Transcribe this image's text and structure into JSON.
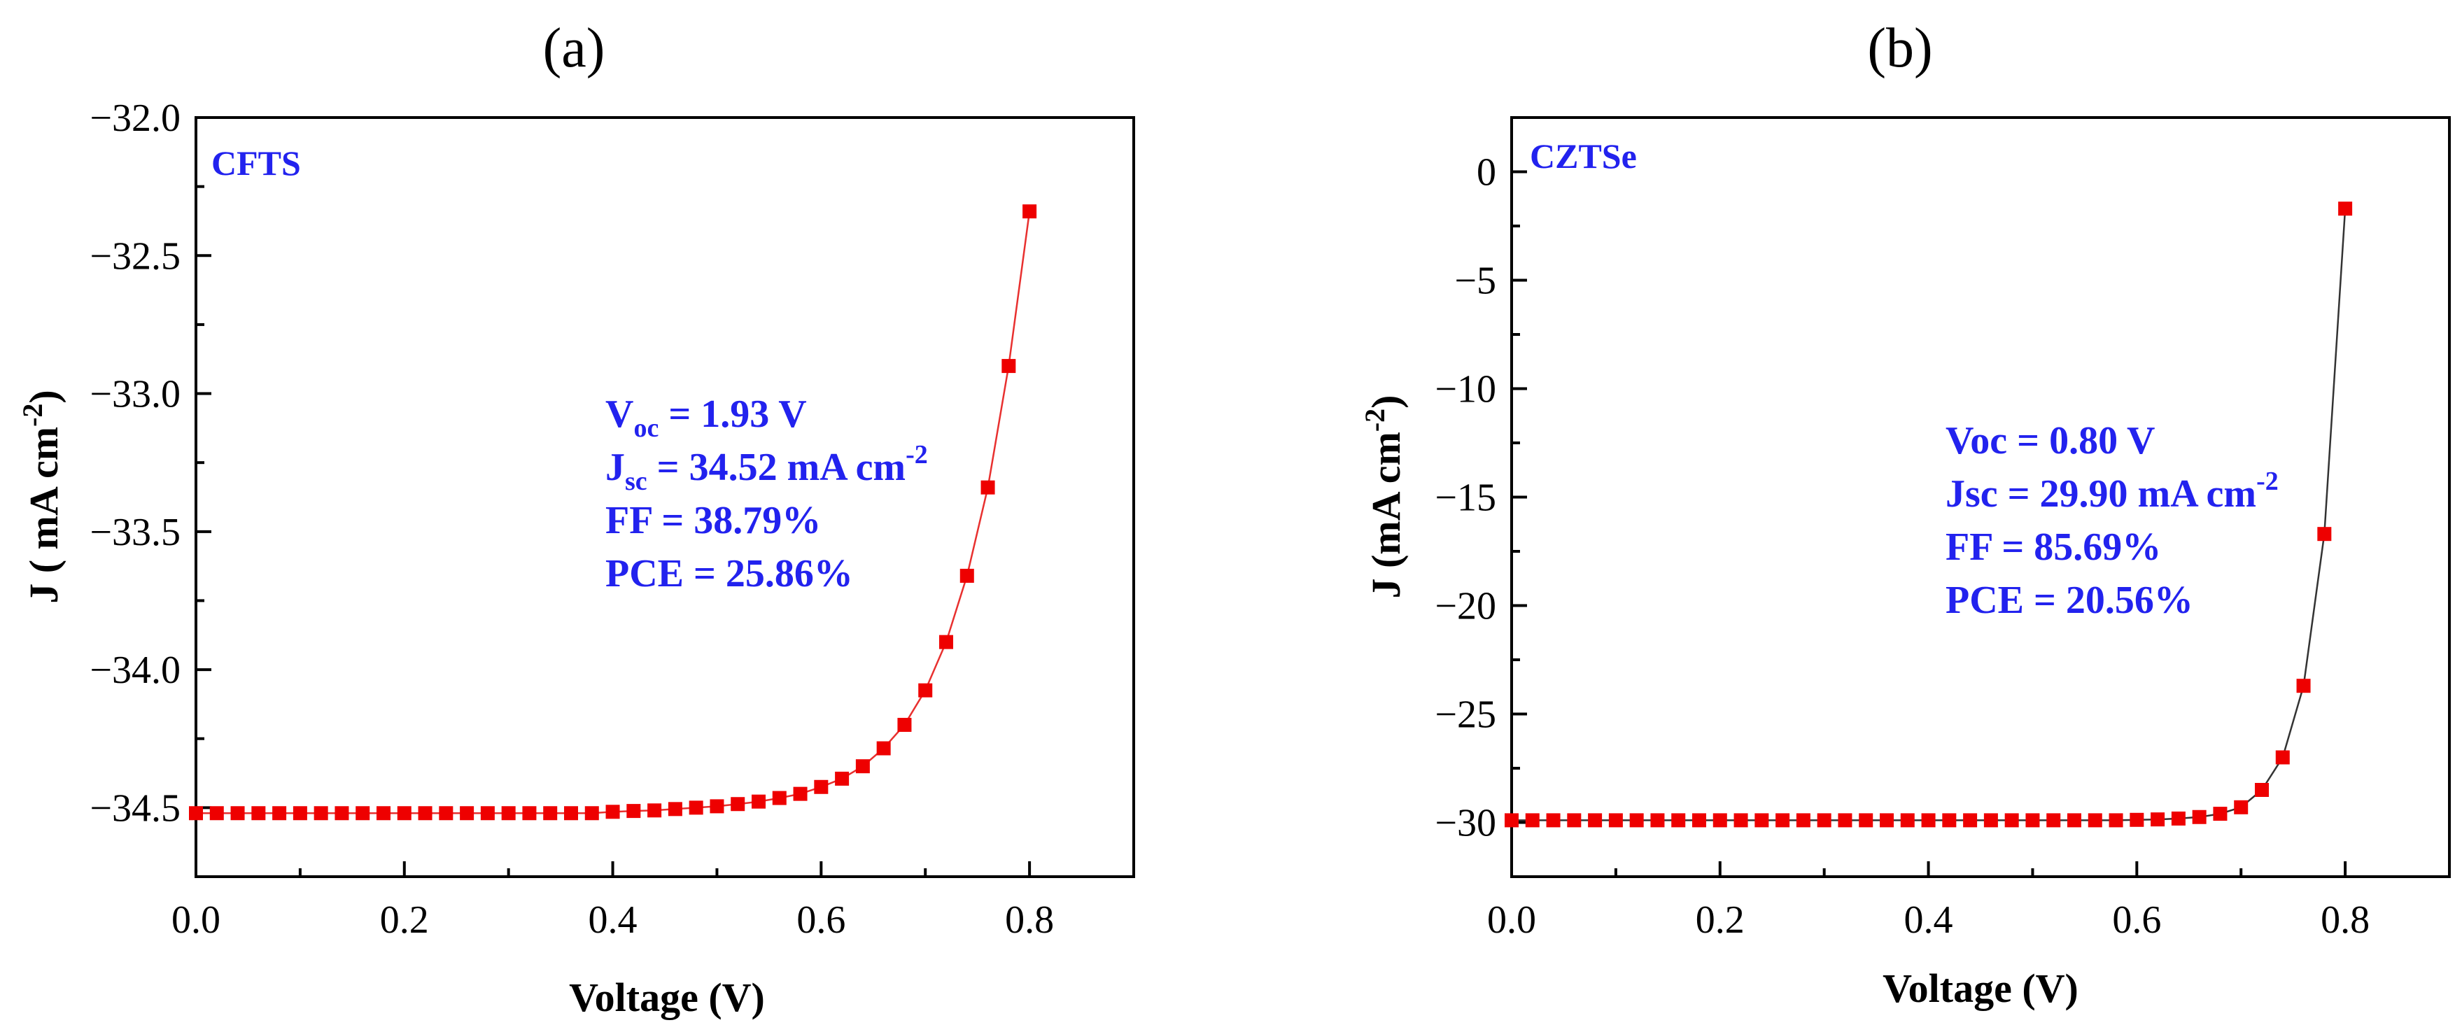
{
  "chart_data": [
    {
      "panel_label": "(a)",
      "type": "line",
      "title": "",
      "xlabel": "Voltage (V)",
      "ylabel_prefix": "J ( mA cm",
      "ylabel_sup": "-2",
      "ylabel_suffix": ")",
      "xlim": [
        0.0,
        0.9
      ],
      "ylim": [
        -34.75,
        -32.0
      ],
      "xticks": [
        0.0,
        0.2,
        0.4,
        0.6,
        0.8
      ],
      "xtick_labels": [
        "0.0",
        "0.2",
        "0.4",
        "0.6",
        "0.8"
      ],
      "yticks": [
        -34.5,
        -34.0,
        -33.5,
        -33.0,
        -32.5,
        -32.0
      ],
      "ytick_labels": [
        "−34.5",
        "−34.0",
        "−33.5",
        "−33.0",
        "−32.5",
        "−32.0"
      ],
      "grid": false,
      "line_color": "#e8302f",
      "marker_color": "#ee0000",
      "label_color": "#2222ee",
      "sample_label": "CFTS",
      "annotations": [
        {
          "parts": [
            {
              "t": "V"
            },
            {
              "t": "oc",
              "sub": true
            },
            {
              "t": " = 1.93 V"
            }
          ]
        },
        {
          "parts": [
            {
              "t": "J"
            },
            {
              "t": "sc",
              "sub": true
            },
            {
              "t": " = 34.52 mA cm"
            },
            {
              "t": "-2",
              "sup": true
            }
          ]
        },
        {
          "parts": [
            {
              "t": "FF = 38.79%"
            }
          ]
        },
        {
          "parts": [
            {
              "t": "PCE = 25.86%"
            }
          ]
        }
      ],
      "x": [
        0.0,
        0.02,
        0.04,
        0.06,
        0.08,
        0.1,
        0.12,
        0.14,
        0.16,
        0.18,
        0.2,
        0.22,
        0.24,
        0.26,
        0.28,
        0.3,
        0.32,
        0.34,
        0.36,
        0.38,
        0.4,
        0.42,
        0.44,
        0.46,
        0.48,
        0.5,
        0.52,
        0.54,
        0.56,
        0.58,
        0.6,
        0.62,
        0.64,
        0.66,
        0.68,
        0.7,
        0.72,
        0.74,
        0.76,
        0.78,
        0.8
      ],
      "y": [
        -34.52,
        -34.52,
        -34.52,
        -34.52,
        -34.52,
        -34.52,
        -34.52,
        -34.52,
        -34.52,
        -34.52,
        -34.52,
        -34.52,
        -34.52,
        -34.52,
        -34.52,
        -34.52,
        -34.52,
        -34.52,
        -34.52,
        -34.52,
        -34.515,
        -34.512,
        -34.51,
        -34.505,
        -34.5,
        -34.495,
        -34.487,
        -34.478,
        -34.465,
        -34.45,
        -34.425,
        -34.395,
        -34.35,
        -34.285,
        -34.2,
        -34.075,
        -33.9,
        -33.66,
        -33.34,
        -32.9,
        -32.34
      ]
    },
    {
      "panel_label": "(b)",
      "type": "line",
      "title": "",
      "xlabel": "Voltage (V)",
      "ylabel_prefix": "J (mA cm",
      "ylabel_sup": "-2",
      "ylabel_suffix": ")",
      "xlim": [
        0.0,
        0.9
      ],
      "ylim": [
        -32.5,
        2.5
      ],
      "xticks": [
        0.0,
        0.2,
        0.4,
        0.6,
        0.8
      ],
      "xtick_labels": [
        "0.0",
        "0.2",
        "0.4",
        "0.6",
        "0.8"
      ],
      "yticks": [
        -30,
        -25,
        -20,
        -15,
        -10,
        -5,
        0
      ],
      "ytick_labels": [
        "−30",
        "−25",
        "−20",
        "−15",
        "−10",
        "−5",
        "0"
      ],
      "grid": false,
      "line_color": "#333333",
      "marker_color": "#ee0000",
      "label_color": "#2222ee",
      "sample_label": "CZTSe",
      "annotations": [
        {
          "parts": [
            {
              "t": "Voc = 0.80 V"
            }
          ]
        },
        {
          "parts": [
            {
              "t": "Jsc = 29.90 mA cm"
            },
            {
              "t": "-2",
              "sup": true
            }
          ]
        },
        {
          "parts": [
            {
              "t": "FF = 85.69%"
            }
          ]
        },
        {
          "parts": [
            {
              "t": "PCE = 20.56%"
            }
          ]
        }
      ],
      "x": [
        0.0,
        0.02,
        0.04,
        0.06,
        0.08,
        0.1,
        0.12,
        0.14,
        0.16,
        0.18,
        0.2,
        0.22,
        0.24,
        0.26,
        0.28,
        0.3,
        0.32,
        0.34,
        0.36,
        0.38,
        0.4,
        0.42,
        0.44,
        0.46,
        0.48,
        0.5,
        0.52,
        0.54,
        0.56,
        0.58,
        0.6,
        0.62,
        0.64,
        0.66,
        0.68,
        0.7,
        0.72,
        0.74,
        0.76,
        0.78,
        0.8
      ],
      "y": [
        -29.9,
        -29.9,
        -29.9,
        -29.9,
        -29.9,
        -29.9,
        -29.9,
        -29.9,
        -29.9,
        -29.9,
        -29.9,
        -29.9,
        -29.9,
        -29.9,
        -29.9,
        -29.9,
        -29.9,
        -29.9,
        -29.9,
        -29.9,
        -29.9,
        -29.9,
        -29.9,
        -29.9,
        -29.9,
        -29.9,
        -29.9,
        -29.9,
        -29.9,
        -29.9,
        -29.88,
        -29.86,
        -29.82,
        -29.75,
        -29.6,
        -29.3,
        -28.5,
        -27.0,
        -23.7,
        -16.7,
        -1.7
      ]
    }
  ]
}
